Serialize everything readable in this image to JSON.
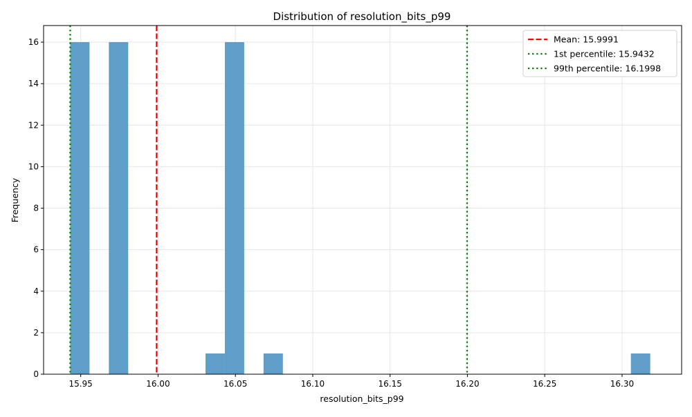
{
  "chart_data": {
    "type": "bar",
    "title": "Distribution of resolution_bits_p99",
    "xlabel": "resolution_bits_p99",
    "ylabel": "Frequency",
    "xlim": [
      15.926,
      16.3385
    ],
    "ylim": [
      0,
      16.8
    ],
    "xticks": [
      "15.95",
      "16.00",
      "16.05",
      "16.10",
      "16.15",
      "16.20",
      "16.25",
      "16.30"
    ],
    "xtick_values": [
      15.95,
      16.0,
      16.05,
      16.1,
      16.15,
      16.2,
      16.25,
      16.3
    ],
    "yticks": [
      "0",
      "2",
      "4",
      "6",
      "8",
      "10",
      "12",
      "14",
      "16"
    ],
    "ytick_values": [
      0,
      2,
      4,
      6,
      8,
      10,
      12,
      14,
      16
    ],
    "grid": true,
    "bin_edges": [
      15.9432,
      15.9557,
      15.9682,
      15.9807,
      15.9932,
      16.0057,
      16.0182,
      16.0307,
      16.0432,
      16.0557,
      16.0682,
      16.0807,
      16.0932,
      16.1057,
      16.1182,
      16.1307,
      16.1432,
      16.1557,
      16.1682,
      16.1807,
      16.1932,
      16.2057,
      16.2182,
      16.2307,
      16.2432,
      16.2557,
      16.2682,
      16.2807,
      16.2932,
      16.3057,
      16.3182
    ],
    "counts": [
      16,
      0,
      16,
      0,
      0,
      0,
      0,
      1,
      16,
      0,
      1,
      0,
      0,
      0,
      0,
      0,
      0,
      0,
      0,
      0,
      0,
      0,
      0,
      0,
      0,
      0,
      0,
      0,
      0,
      1
    ],
    "bar_color": "#5f9ec9",
    "reference_lines": [
      {
        "label": "Mean: 15.9991",
        "x": 15.9991,
        "color": "#ff0000",
        "style": "dashed"
      },
      {
        "label": "1st percentile: 15.9432",
        "x": 15.9432,
        "color": "#008000",
        "style": "dotted"
      },
      {
        "label": "99th percentile: 16.1998",
        "x": 16.1998,
        "color": "#008000",
        "style": "dotted"
      }
    ],
    "legend_position": "top-right"
  }
}
